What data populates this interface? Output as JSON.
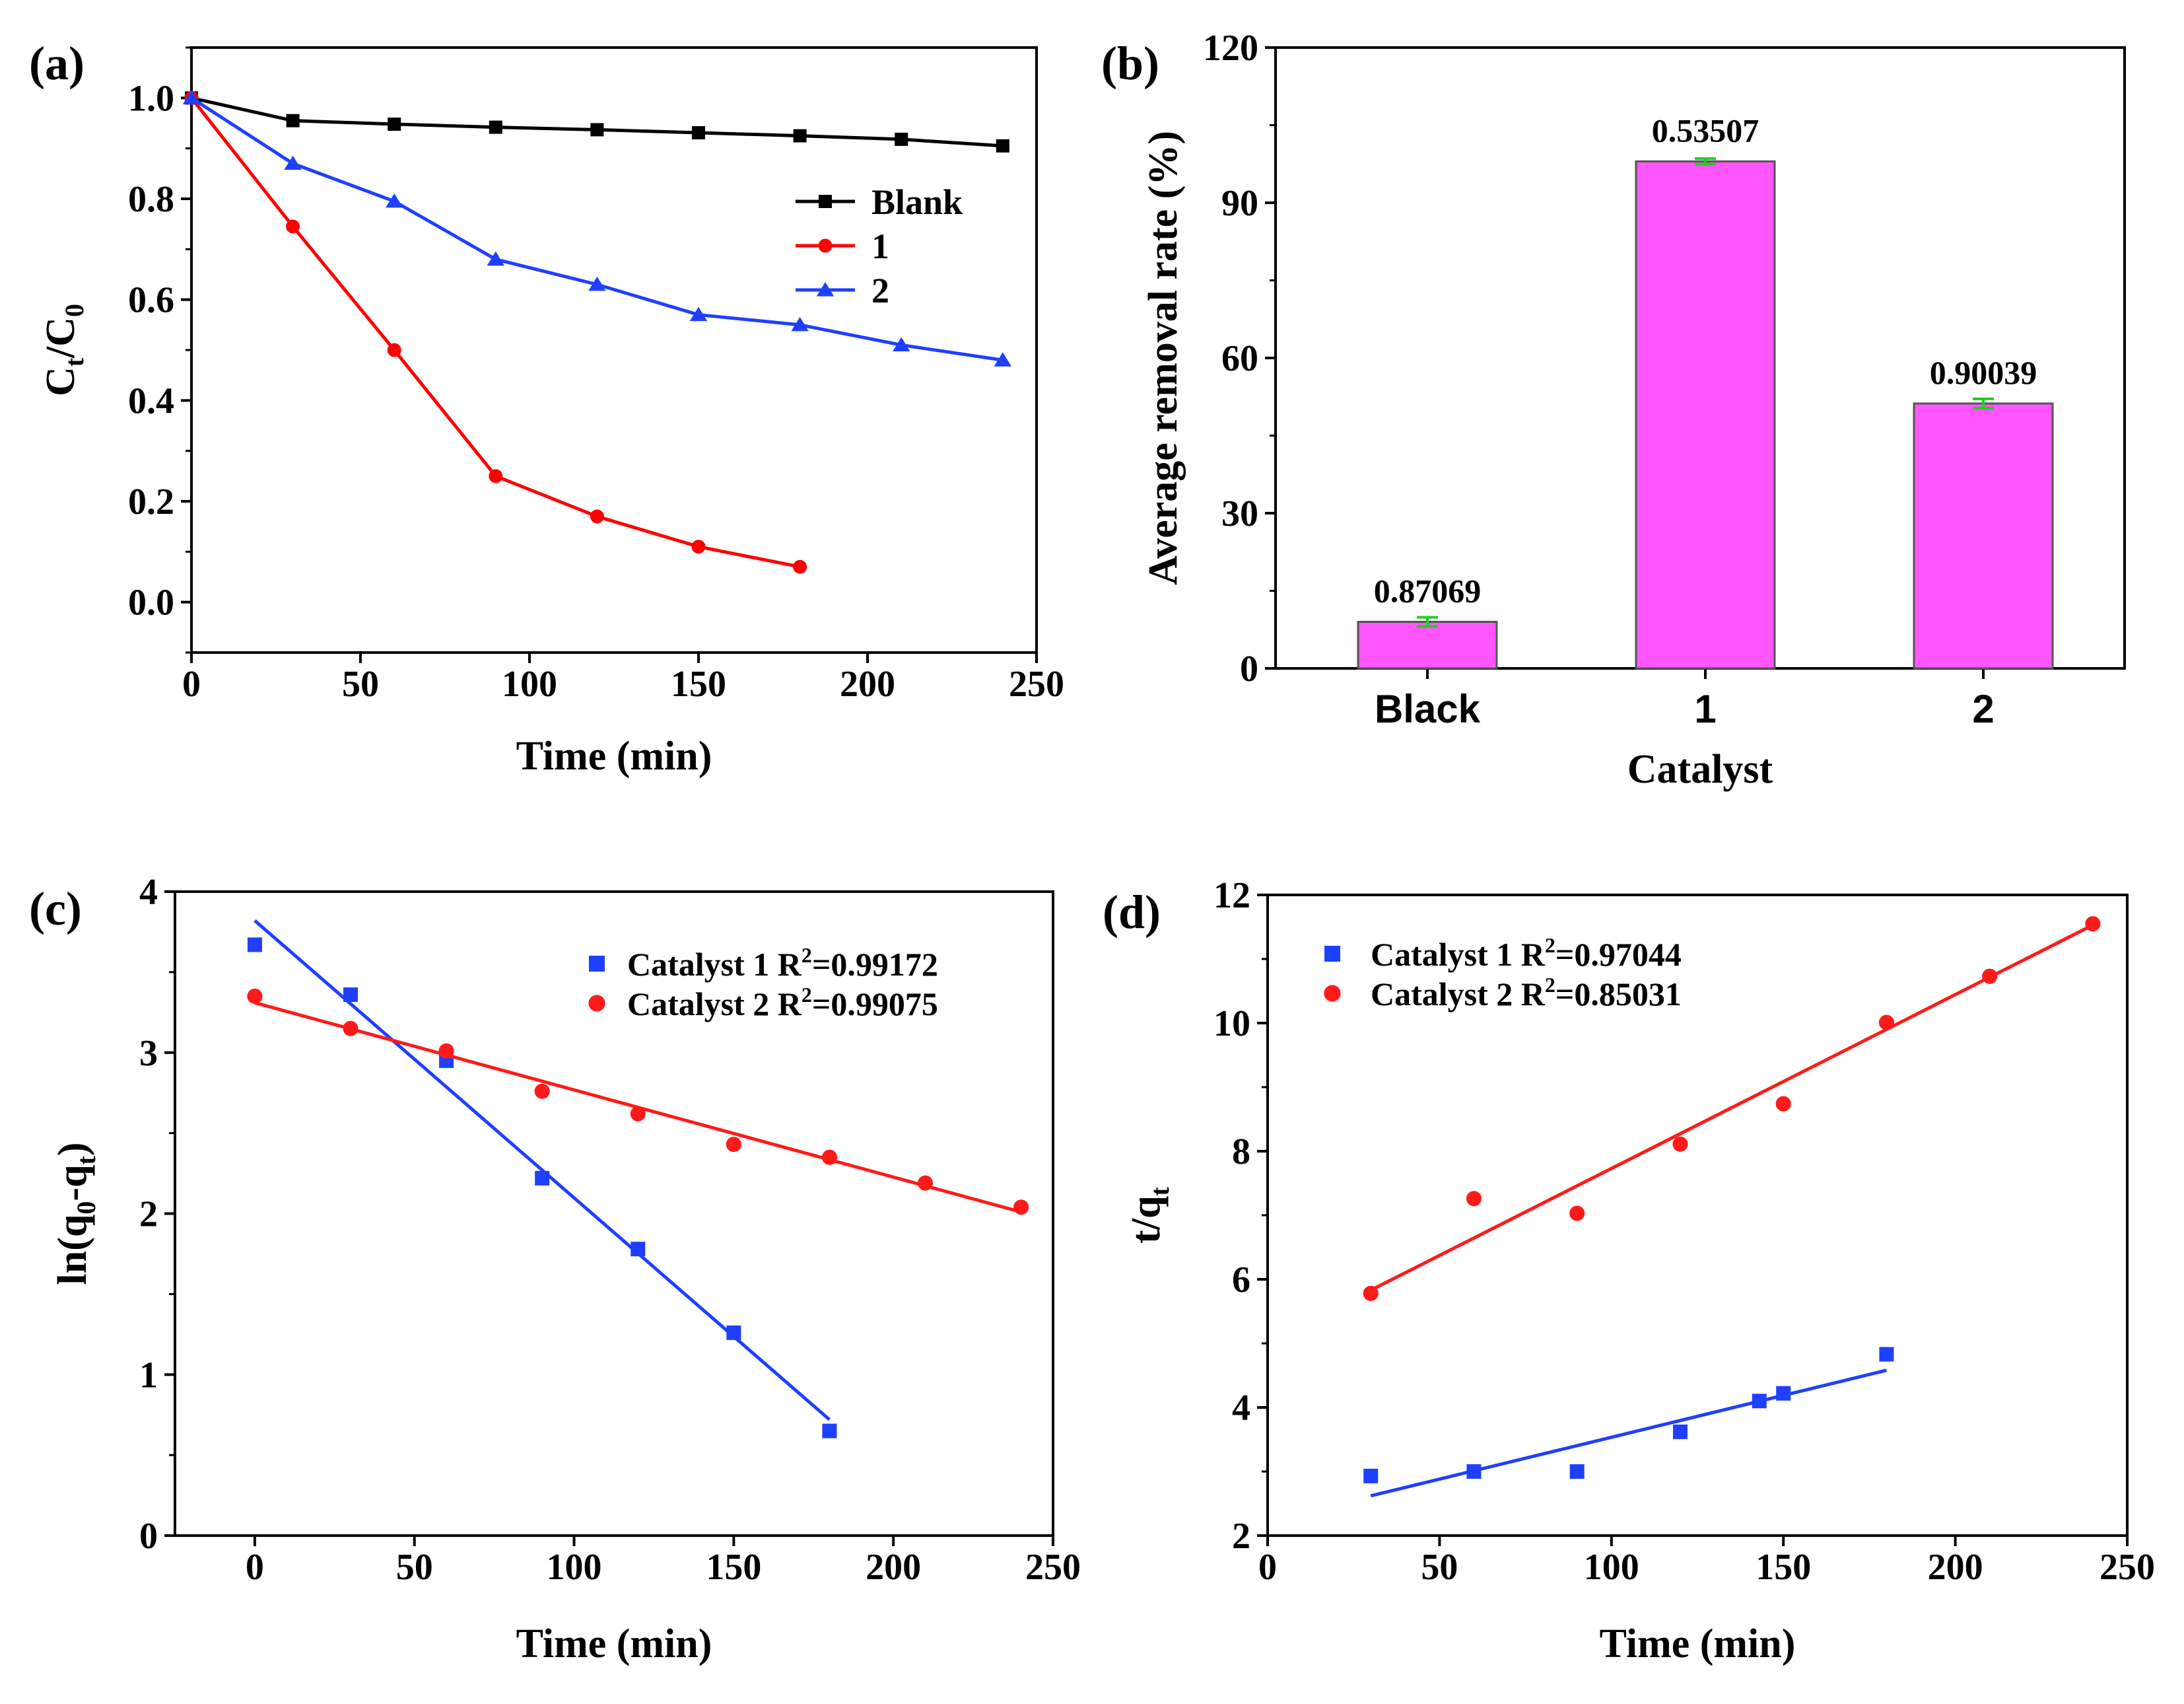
{
  "chart_data": [
    {
      "panel": "(a)",
      "type": "line",
      "xlabel": "Time (min)",
      "ylabel": "C_t/C_0",
      "ylabel_parts": {
        "main": "C",
        "sub1": "t",
        "slash": "/C",
        "sub2": "0"
      },
      "xlim": [
        0,
        250
      ],
      "ylim": [
        -0.1,
        1.1
      ],
      "xticks": [
        0,
        50,
        100,
        150,
        200,
        250
      ],
      "yticks": [
        0.0,
        0.2,
        0.4,
        0.6,
        0.8,
        1.0
      ],
      "legend": "right",
      "series": [
        {
          "name": "Blank",
          "color": "#000000",
          "marker": "square",
          "x": [
            0,
            30,
            60,
            90,
            120,
            150,
            180,
            210,
            240
          ],
          "y": [
            1.0,
            0.955,
            0.948,
            0.942,
            0.937,
            0.931,
            0.925,
            0.918,
            0.905
          ]
        },
        {
          "name": "1",
          "color": "#ff0000",
          "marker": "circle",
          "x": [
            0,
            30,
            60,
            90,
            120,
            150,
            180
          ],
          "y": [
            1.0,
            0.745,
            0.5,
            0.25,
            0.17,
            0.11,
            0.07
          ]
        },
        {
          "name": "2",
          "color": "#1f3fff",
          "marker": "triangle",
          "x": [
            0,
            30,
            60,
            90,
            120,
            150,
            180,
            210,
            240
          ],
          "y": [
            1.0,
            0.87,
            0.795,
            0.68,
            0.63,
            0.57,
            0.55,
            0.51,
            0.48
          ]
        }
      ]
    },
    {
      "panel": "(b)",
      "type": "bar",
      "xlabel": "Catalyst",
      "ylabel": "Average removal rate (%)",
      "ylim": [
        0,
        120
      ],
      "yticks": [
        0,
        30,
        60,
        90,
        120
      ],
      "categories": [
        "Black",
        "1",
        "2"
      ],
      "values": [
        9.0,
        98.0,
        51.2
      ],
      "errors": [
        0.87069,
        0.53507,
        0.90039
      ],
      "data_labels": [
        "0.87069",
        "0.53507",
        "0.90039"
      ],
      "bar_color": "#ff55ff",
      "error_color": "#22cc22"
    },
    {
      "panel": "(c)",
      "type": "scatter",
      "xlabel": "Time (min)",
      "ylabel": "ln(q_0-q_t)",
      "ylabel_parts": {
        "a": "ln(q",
        "sub1": "0",
        "b": "-q",
        "sub2": "t",
        "c": ")"
      },
      "xlim": [
        -25,
        250
      ],
      "ylim": [
        0,
        4
      ],
      "xticks": [
        0,
        50,
        100,
        150,
        200,
        250
      ],
      "yticks": [
        0,
        1,
        2,
        3,
        4
      ],
      "legend": "top-right",
      "series": [
        {
          "name": "Catalyst 1",
          "r2_label": "R",
          "r2_sup": "2",
          "r2_value": "=0.99172",
          "color": "#1f3fff",
          "marker": "square",
          "x": [
            0,
            30,
            60,
            90,
            120,
            150,
            180
          ],
          "y": [
            3.67,
            3.36,
            2.95,
            2.22,
            1.78,
            1.26,
            0.65
          ],
          "fit": {
            "x": [
              0,
              180
            ],
            "y": [
              3.82,
              0.72
            ]
          }
        },
        {
          "name": "Catalyst 2",
          "r2_label": "R",
          "r2_sup": "2",
          "r2_value": "=0.99075",
          "color": "#ff1a1a",
          "marker": "circle",
          "x": [
            0,
            30,
            60,
            90,
            120,
            150,
            180,
            210,
            240
          ],
          "y": [
            3.35,
            3.15,
            3.01,
            2.76,
            2.62,
            2.43,
            2.35,
            2.19,
            2.04
          ],
          "fit": {
            "x": [
              0,
              240
            ],
            "y": [
              3.31,
              2.01
            ]
          }
        }
      ]
    },
    {
      "panel": "(d)",
      "type": "scatter",
      "xlabel": "Time (min)",
      "ylabel": "t/q_t",
      "ylabel_parts": {
        "a": "t/q",
        "sub": "t"
      },
      "xlim": [
        0,
        250
      ],
      "ylim": [
        2,
        12
      ],
      "xticks": [
        0,
        50,
        100,
        150,
        200,
        250
      ],
      "yticks": [
        2,
        4,
        6,
        8,
        10,
        12
      ],
      "legend": "top-left",
      "series": [
        {
          "name": "Catalyst 1",
          "r2_label": "R",
          "r2_sup": "2",
          "r2_value": "=0.97044",
          "color": "#1f3fff",
          "marker": "square",
          "x": [
            30,
            60,
            90,
            120,
            143,
            150,
            180
          ],
          "y": [
            2.93,
            3.0,
            3.0,
            3.62,
            4.1,
            4.22,
            4.83
          ],
          "fit": {
            "x": [
              30,
              180
            ],
            "y": [
              2.62,
              4.58
            ]
          }
        },
        {
          "name": "Catalyst 2",
          "r2_label": "R",
          "r2_sup": "2",
          "r2_value": "=0.85031",
          "color": "#ff1a1a",
          "marker": "circle",
          "x": [
            30,
            60,
            90,
            120,
            150,
            180,
            210,
            240
          ],
          "y": [
            5.78,
            7.26,
            7.03,
            8.11,
            8.74,
            10.01,
            10.73,
            11.55
          ],
          "fit": {
            "x": [
              30,
              240
            ],
            "y": [
              5.83,
              11.53
            ]
          }
        }
      ]
    }
  ]
}
